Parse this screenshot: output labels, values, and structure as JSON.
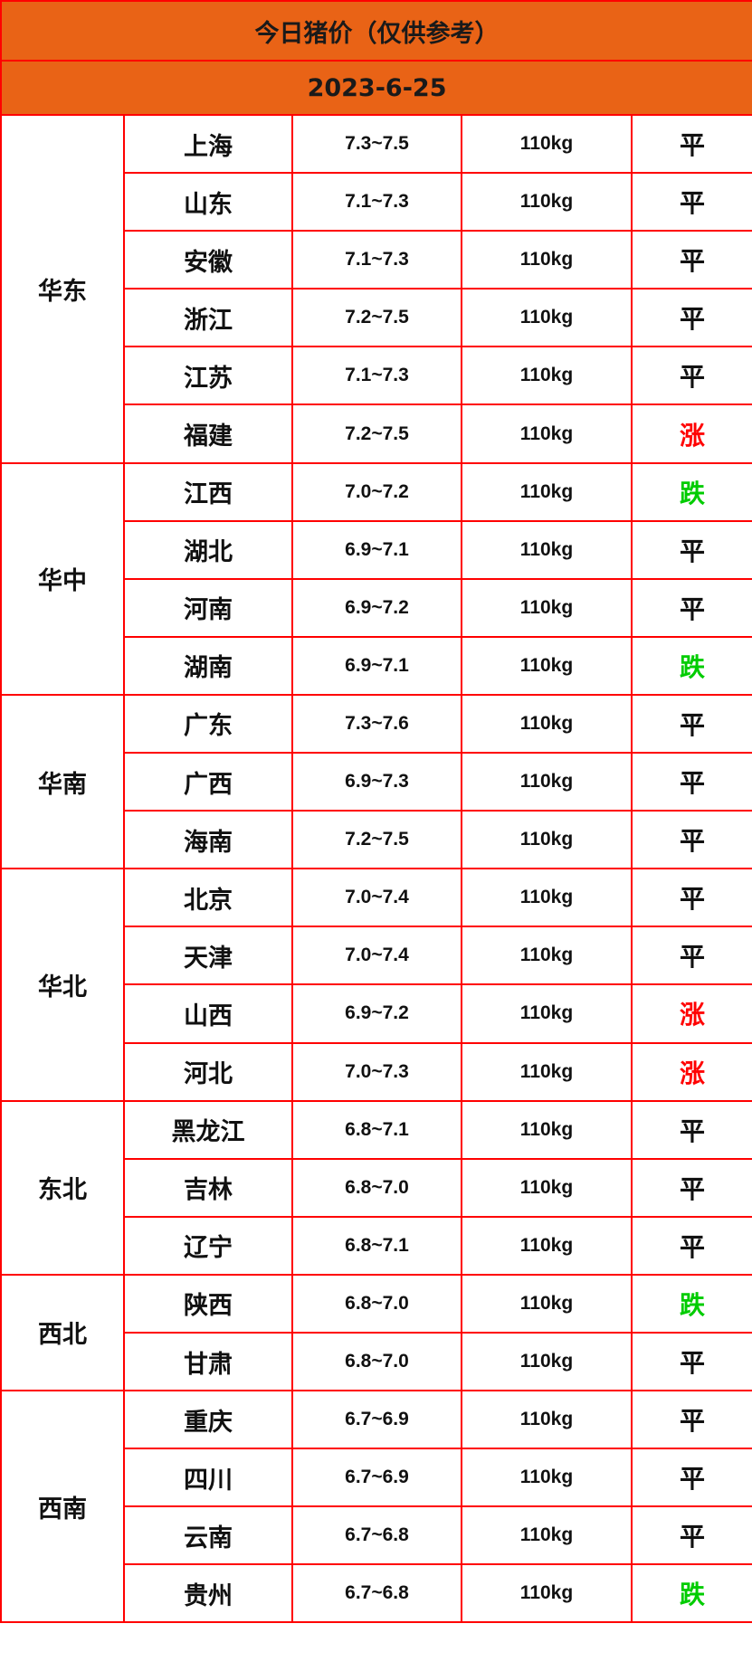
{
  "title": "今日猪价（仅供参考）",
  "date": "2023-6-25",
  "trend_colors": {
    "平": "#111111",
    "涨": "#ff0000",
    "跌": "#00cc00"
  },
  "regions": [
    {
      "name": "华东",
      "rows": [
        [
          "上海",
          "7.3~7.5",
          "110kg",
          "平"
        ],
        [
          "山东",
          "7.1~7.3",
          "110kg",
          "平"
        ],
        [
          "安徽",
          "7.1~7.3",
          "110kg",
          "平"
        ],
        [
          "浙江",
          "7.2~7.5",
          "110kg",
          "平"
        ],
        [
          "江苏",
          "7.1~7.3",
          "110kg",
          "平"
        ],
        [
          "福建",
          "7.2~7.5",
          "110kg",
          "涨"
        ]
      ]
    },
    {
      "name": "华中",
      "rows": [
        [
          "江西",
          "7.0~7.2",
          "110kg",
          "跌"
        ],
        [
          "湖北",
          "6.9~7.1",
          "110kg",
          "平"
        ],
        [
          "河南",
          "6.9~7.2",
          "110kg",
          "平"
        ],
        [
          "湖南",
          "6.9~7.1",
          "110kg",
          "跌"
        ]
      ]
    },
    {
      "name": "华南",
      "rows": [
        [
          "广东",
          "7.3~7.6",
          "110kg",
          "平"
        ],
        [
          "广西",
          "6.9~7.3",
          "110kg",
          "平"
        ],
        [
          "海南",
          "7.2~7.5",
          "110kg",
          "平"
        ]
      ]
    },
    {
      "name": "华北",
      "rows": [
        [
          "北京",
          "7.0~7.4",
          "110kg",
          "平"
        ],
        [
          "天津",
          "7.0~7.4",
          "110kg",
          "平"
        ],
        [
          "山西",
          "6.9~7.2",
          "110kg",
          "涨"
        ],
        [
          "河北",
          "7.0~7.3",
          "110kg",
          "涨"
        ]
      ]
    },
    {
      "name": "东北",
      "rows": [
        [
          "黑龙江",
          "6.8~7.1",
          "110kg",
          "平"
        ],
        [
          "吉林",
          "6.8~7.0",
          "110kg",
          "平"
        ],
        [
          "辽宁",
          "6.8~7.1",
          "110kg",
          "平"
        ]
      ]
    },
    {
      "name": "西北",
      "rows": [
        [
          "陕西",
          "6.8~7.0",
          "110kg",
          "跌"
        ],
        [
          "甘肃",
          "6.8~7.0",
          "110kg",
          "平"
        ]
      ]
    },
    {
      "name": "西南",
      "rows": [
        [
          "重庆",
          "6.7~6.9",
          "110kg",
          "平"
        ],
        [
          "四川",
          "6.7~6.9",
          "110kg",
          "平"
        ],
        [
          "云南",
          "6.7~6.8",
          "110kg",
          "平"
        ],
        [
          "贵州",
          "6.7~6.8",
          "110kg",
          "跌"
        ]
      ]
    }
  ]
}
